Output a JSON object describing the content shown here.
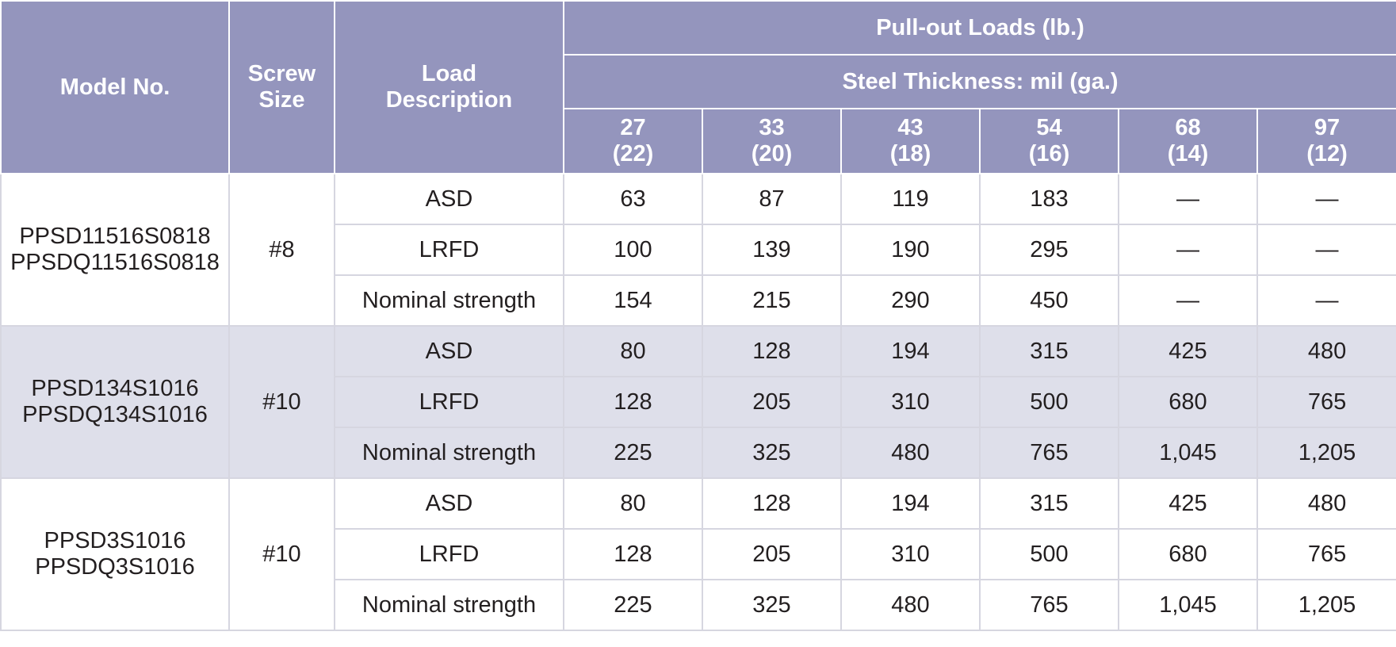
{
  "header": {
    "model_no": "Model No.",
    "screw_size_line1": "Screw",
    "screw_size_line2": "Size",
    "load_desc_line1": "Load",
    "load_desc_line2": "Description",
    "pullout": "Pull-out Loads (lb.)",
    "steel_thickness": "Steel Thickness: mil (ga.)",
    "thickness_columns": [
      {
        "mil": "27",
        "ga": "(22)"
      },
      {
        "mil": "33",
        "ga": "(20)"
      },
      {
        "mil": "43",
        "ga": "(18)"
      },
      {
        "mil": "54",
        "ga": "(16)"
      },
      {
        "mil": "68",
        "ga": "(14)"
      },
      {
        "mil": "97",
        "ga": "(12)"
      }
    ]
  },
  "groups": [
    {
      "model_line1": "PPSD11516S0818",
      "model_line2": "PPSDQ11516S0818",
      "screw_size": "#8",
      "rows": [
        {
          "desc": "ASD",
          "values": [
            "63",
            "87",
            "119",
            "183",
            "—",
            "—"
          ]
        },
        {
          "desc": "LRFD",
          "values": [
            "100",
            "139",
            "190",
            "295",
            "—",
            "—"
          ]
        },
        {
          "desc": "Nominal strength",
          "values": [
            "154",
            "215",
            "290",
            "450",
            "—",
            "—"
          ]
        }
      ]
    },
    {
      "model_line1": "PPSD134S1016",
      "model_line2": "PPSDQ134S1016",
      "screw_size": "#10",
      "rows": [
        {
          "desc": "ASD",
          "values": [
            "80",
            "128",
            "194",
            "315",
            "425",
            "480"
          ]
        },
        {
          "desc": "LRFD",
          "values": [
            "128",
            "205",
            "310",
            "500",
            "680",
            "765"
          ]
        },
        {
          "desc": "Nominal strength",
          "values": [
            "225",
            "325",
            "480",
            "765",
            "1,045",
            "1,205"
          ]
        }
      ]
    },
    {
      "model_line1": "PPSD3S1016",
      "model_line2": "PPSDQ3S1016",
      "screw_size": "#10",
      "rows": [
        {
          "desc": "ASD",
          "values": [
            "80",
            "128",
            "194",
            "315",
            "425",
            "480"
          ]
        },
        {
          "desc": "LRFD",
          "values": [
            "128",
            "205",
            "310",
            "500",
            "680",
            "765"
          ]
        },
        {
          "desc": "Nominal strength",
          "values": [
            "225",
            "325",
            "480",
            "765",
            "1,045",
            "1,205"
          ]
        }
      ]
    }
  ]
}
